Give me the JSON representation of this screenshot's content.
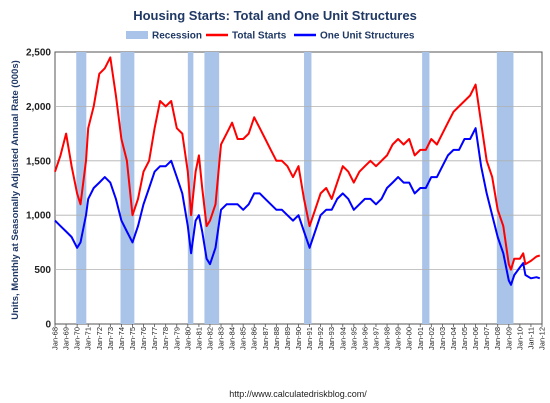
{
  "chart_data": {
    "type": "line",
    "title": "Housing Starts: Total and One Unit Structures",
    "ylabel": "Units, Monthly at Seasonally Adjusted Annual Rate (000s)",
    "source": "http://www.calculatedriskblog.com/",
    "ylim": [
      0,
      2500
    ],
    "yticks": [
      0,
      500,
      1000,
      1500,
      2000,
      2500
    ],
    "ytick_labels": [
      "0",
      "500",
      "1,000",
      "1,500",
      "2,000",
      "2,500"
    ],
    "xlim": [
      1968.0,
      2012.0
    ],
    "xtick_labels": [
      "Jan-68",
      "Jan-69",
      "Jan-70",
      "Jan-71",
      "Jan-72",
      "Jan-73",
      "Jan-74",
      "Jan-75",
      "Jan-76",
      "Jan-77",
      "Jan-78",
      "Jan-79",
      "Jan-80",
      "Jan-81",
      "Jan-82",
      "Jan-83",
      "Jan-84",
      "Jan-85",
      "Jan-86",
      "Jan-87",
      "Jan-88",
      "Jan-89",
      "Jan-90",
      "Jan-91",
      "Jan-92",
      "Jan-93",
      "Jan-94",
      "Jan-95",
      "Jan-96",
      "Jan-97",
      "Jan-98",
      "Jan-99",
      "Jan-00",
      "Jan-01",
      "Jan-02",
      "Jan-03",
      "Jan-04",
      "Jan-05",
      "Jan-06",
      "Jan-07",
      "Jan-08",
      "Jan-09",
      "Jan-10",
      "Jan-11",
      "Jan-12"
    ],
    "grid": true,
    "legend": {
      "position": "top",
      "items": [
        {
          "label": "Recession",
          "kind": "band",
          "color": "#a9c4e8"
        },
        {
          "label": "Total Starts",
          "kind": "line",
          "color": "#ff0000"
        },
        {
          "label": "One Unit Structures",
          "kind": "line",
          "color": "#0000ff"
        }
      ]
    },
    "recessions": [
      {
        "start": 1969.92,
        "end": 1970.83
      },
      {
        "start": 1973.92,
        "end": 1975.17
      },
      {
        "start": 1980.0,
        "end": 1980.5
      },
      {
        "start": 1981.5,
        "end": 1982.83
      },
      {
        "start": 1990.5,
        "end": 1991.17
      },
      {
        "start": 2001.17,
        "end": 2001.83
      },
      {
        "start": 2007.92,
        "end": 2009.42
      }
    ],
    "series": [
      {
        "name": "Total Starts",
        "color": "#ff0000",
        "points": [
          [
            1968.0,
            1400
          ],
          [
            1968.5,
            1550
          ],
          [
            1969.0,
            1750
          ],
          [
            1969.5,
            1450
          ],
          [
            1970.0,
            1200
          ],
          [
            1970.3,
            1100
          ],
          [
            1970.8,
            1500
          ],
          [
            1971.0,
            1800
          ],
          [
            1971.5,
            2000
          ],
          [
            1972.0,
            2300
          ],
          [
            1972.5,
            2350
          ],
          [
            1973.0,
            2450
          ],
          [
            1973.5,
            2100
          ],
          [
            1974.0,
            1700
          ],
          [
            1974.5,
            1500
          ],
          [
            1975.0,
            1000
          ],
          [
            1975.5,
            1150
          ],
          [
            1976.0,
            1400
          ],
          [
            1976.5,
            1500
          ],
          [
            1977.0,
            1800
          ],
          [
            1977.5,
            2050
          ],
          [
            1978.0,
            2000
          ],
          [
            1978.5,
            2050
          ],
          [
            1979.0,
            1800
          ],
          [
            1979.5,
            1750
          ],
          [
            1980.0,
            1400
          ],
          [
            1980.3,
            1000
          ],
          [
            1980.7,
            1400
          ],
          [
            1981.0,
            1550
          ],
          [
            1981.3,
            1250
          ],
          [
            1981.7,
            900
          ],
          [
            1982.0,
            950
          ],
          [
            1982.5,
            1100
          ],
          [
            1983.0,
            1650
          ],
          [
            1983.5,
            1750
          ],
          [
            1984.0,
            1850
          ],
          [
            1984.5,
            1700
          ],
          [
            1985.0,
            1700
          ],
          [
            1985.5,
            1750
          ],
          [
            1986.0,
            1900
          ],
          [
            1986.5,
            1800
          ],
          [
            1987.0,
            1700
          ],
          [
            1987.5,
            1600
          ],
          [
            1988.0,
            1500
          ],
          [
            1988.5,
            1500
          ],
          [
            1989.0,
            1450
          ],
          [
            1989.5,
            1350
          ],
          [
            1990.0,
            1450
          ],
          [
            1990.5,
            1150
          ],
          [
            1991.0,
            900
          ],
          [
            1991.5,
            1050
          ],
          [
            1992.0,
            1200
          ],
          [
            1992.5,
            1250
          ],
          [
            1993.0,
            1150
          ],
          [
            1993.5,
            1300
          ],
          [
            1994.0,
            1450
          ],
          [
            1994.5,
            1400
          ],
          [
            1995.0,
            1300
          ],
          [
            1995.5,
            1400
          ],
          [
            1996.0,
            1450
          ],
          [
            1996.5,
            1500
          ],
          [
            1997.0,
            1450
          ],
          [
            1997.5,
            1500
          ],
          [
            1998.0,
            1550
          ],
          [
            1998.5,
            1650
          ],
          [
            1999.0,
            1700
          ],
          [
            1999.5,
            1650
          ],
          [
            2000.0,
            1700
          ],
          [
            2000.5,
            1550
          ],
          [
            2001.0,
            1600
          ],
          [
            2001.5,
            1600
          ],
          [
            2002.0,
            1700
          ],
          [
            2002.5,
            1650
          ],
          [
            2003.0,
            1750
          ],
          [
            2003.5,
            1850
          ],
          [
            2004.0,
            1950
          ],
          [
            2004.5,
            2000
          ],
          [
            2005.0,
            2050
          ],
          [
            2005.5,
            2100
          ],
          [
            2006.0,
            2200
          ],
          [
            2006.5,
            1850
          ],
          [
            2007.0,
            1500
          ],
          [
            2007.5,
            1350
          ],
          [
            2008.0,
            1050
          ],
          [
            2008.5,
            900
          ],
          [
            2009.0,
            550
          ],
          [
            2009.2,
            500
          ],
          [
            2009.5,
            600
          ],
          [
            2010.0,
            600
          ],
          [
            2010.3,
            650
          ],
          [
            2010.5,
            550
          ],
          [
            2011.0,
            580
          ],
          [
            2011.5,
            620
          ],
          [
            2011.8,
            630
          ]
        ]
      },
      {
        "name": "One Unit Structures",
        "color": "#0000ff",
        "points": [
          [
            1968.0,
            950
          ],
          [
            1968.5,
            900
          ],
          [
            1969.0,
            850
          ],
          [
            1969.5,
            800
          ],
          [
            1970.0,
            700
          ],
          [
            1970.3,
            750
          ],
          [
            1970.8,
            1000
          ],
          [
            1971.0,
            1150
          ],
          [
            1971.5,
            1250
          ],
          [
            1972.0,
            1300
          ],
          [
            1972.5,
            1350
          ],
          [
            1973.0,
            1300
          ],
          [
            1973.5,
            1150
          ],
          [
            1974.0,
            950
          ],
          [
            1974.5,
            850
          ],
          [
            1975.0,
            750
          ],
          [
            1975.5,
            900
          ],
          [
            1976.0,
            1100
          ],
          [
            1976.5,
            1250
          ],
          [
            1977.0,
            1400
          ],
          [
            1977.5,
            1450
          ],
          [
            1978.0,
            1450
          ],
          [
            1978.5,
            1500
          ],
          [
            1979.0,
            1350
          ],
          [
            1979.5,
            1200
          ],
          [
            1980.0,
            900
          ],
          [
            1980.3,
            650
          ],
          [
            1980.7,
            950
          ],
          [
            1981.0,
            1000
          ],
          [
            1981.3,
            850
          ],
          [
            1981.7,
            600
          ],
          [
            1982.0,
            550
          ],
          [
            1982.5,
            700
          ],
          [
            1983.0,
            1050
          ],
          [
            1983.5,
            1100
          ],
          [
            1984.0,
            1100
          ],
          [
            1984.5,
            1100
          ],
          [
            1985.0,
            1050
          ],
          [
            1985.5,
            1100
          ],
          [
            1986.0,
            1200
          ],
          [
            1986.5,
            1200
          ],
          [
            1987.0,
            1150
          ],
          [
            1987.5,
            1100
          ],
          [
            1988.0,
            1050
          ],
          [
            1988.5,
            1050
          ],
          [
            1989.0,
            1000
          ],
          [
            1989.5,
            950
          ],
          [
            1990.0,
            1000
          ],
          [
            1990.5,
            850
          ],
          [
            1991.0,
            700
          ],
          [
            1991.5,
            850
          ],
          [
            1992.0,
            1000
          ],
          [
            1992.5,
            1050
          ],
          [
            1993.0,
            1050
          ],
          [
            1993.5,
            1150
          ],
          [
            1994.0,
            1200
          ],
          [
            1994.5,
            1150
          ],
          [
            1995.0,
            1050
          ],
          [
            1995.5,
            1100
          ],
          [
            1996.0,
            1150
          ],
          [
            1996.5,
            1150
          ],
          [
            1997.0,
            1100
          ],
          [
            1997.5,
            1150
          ],
          [
            1998.0,
            1250
          ],
          [
            1998.5,
            1300
          ],
          [
            1999.0,
            1350
          ],
          [
            1999.5,
            1300
          ],
          [
            2000.0,
            1300
          ],
          [
            2000.5,
            1200
          ],
          [
            2001.0,
            1250
          ],
          [
            2001.5,
            1250
          ],
          [
            2002.0,
            1350
          ],
          [
            2002.5,
            1350
          ],
          [
            2003.0,
            1450
          ],
          [
            2003.5,
            1550
          ],
          [
            2004.0,
            1600
          ],
          [
            2004.5,
            1600
          ],
          [
            2005.0,
            1700
          ],
          [
            2005.5,
            1700
          ],
          [
            2006.0,
            1800
          ],
          [
            2006.5,
            1450
          ],
          [
            2007.0,
            1200
          ],
          [
            2007.5,
            1000
          ],
          [
            2008.0,
            800
          ],
          [
            2008.5,
            650
          ],
          [
            2009.0,
            400
          ],
          [
            2009.2,
            360
          ],
          [
            2009.5,
            450
          ],
          [
            2010.0,
            520
          ],
          [
            2010.3,
            560
          ],
          [
            2010.5,
            450
          ],
          [
            2011.0,
            420
          ],
          [
            2011.5,
            430
          ],
          [
            2011.8,
            420
          ]
        ]
      }
    ]
  }
}
